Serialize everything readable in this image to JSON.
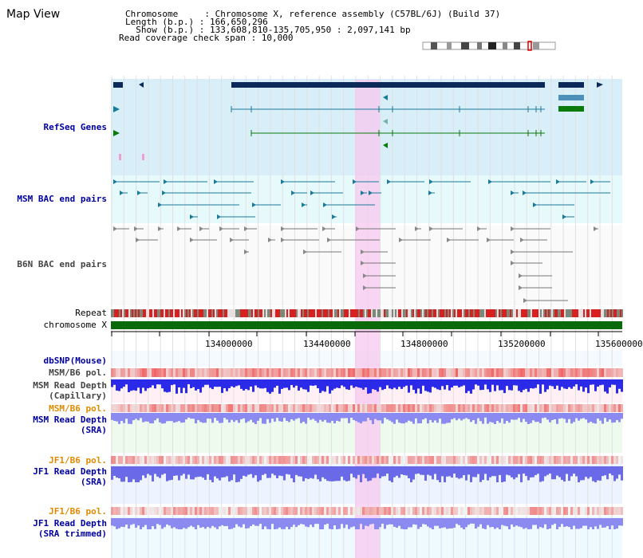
{
  "page": {
    "title": "Map View"
  },
  "header": {
    "rows": [
      {
        "label": "Chromosome",
        "value": "Chromosome X, reference assembly (C57BL/6J) (Build 37)"
      },
      {
        "label": "Length (b.p.)",
        "value": "166,650,296"
      },
      {
        "label": "Show (b.p.)",
        "value": "133,608,810-135,705,950 : 2,097,141 bp"
      },
      {
        "label": "Read coverage check span",
        "value": "10,000"
      }
    ],
    "line1": "Chromosome     : Chromosome X, reference assembly (C57BL/6J) (Build 37)",
    "line2": "Length (b.p.) : 166,650,296",
    "line3": "  Show (b.p.) : 133,608,810-135,705,950 : 2,097,141 bp",
    "line4": "Read coverage check span : 10,000"
  },
  "tracks": {
    "refseq": "RefSeq Genes",
    "msm_bac": "MSM BAC end pairs",
    "b6n_bac": "B6N BAC end pairs",
    "repeat": "Repeat",
    "chromosome": "chromosome X",
    "dbsnp": "dbSNP(Mouse)",
    "msm_pol_1": "MSM/B6 pol.",
    "msm_depth_cap_1": "MSM Read Depth",
    "msm_depth_cap_2": "(Capillary)",
    "msm_pol_2": "MSM/B6 pol.",
    "msm_depth_sra_1": "MSM Read Depth",
    "msm_depth_sra_2": "(SRA)",
    "jf1_pol_1": "JF1/B6 pol.",
    "jf1_depth_sra_1": "JF1 Read Depth",
    "jf1_depth_sra_2": "(SRA)",
    "jf1_pol_2": "JF1/B6 pol.",
    "jf1_depth_trim_1": "JF1 Read Depth",
    "jf1_depth_trim_2": "(SRA trimmed)"
  },
  "axis": {
    "ticks": [
      "134000000",
      "134400000",
      "134800000",
      "135200000",
      "135600000"
    ]
  },
  "colors": {
    "refseq_bg": "#d8eef8",
    "bac_bg": "#e6f9fb",
    "highlight": "#f7c8ef",
    "gene_dark": "#0b2a5a",
    "gene_teal": "#1a7a9a",
    "gene_green": "#0a7a0a",
    "chromosome": "#0a6a0a",
    "pol_red": "#e83a3a",
    "depth_blue": "#3a3ae8"
  }
}
